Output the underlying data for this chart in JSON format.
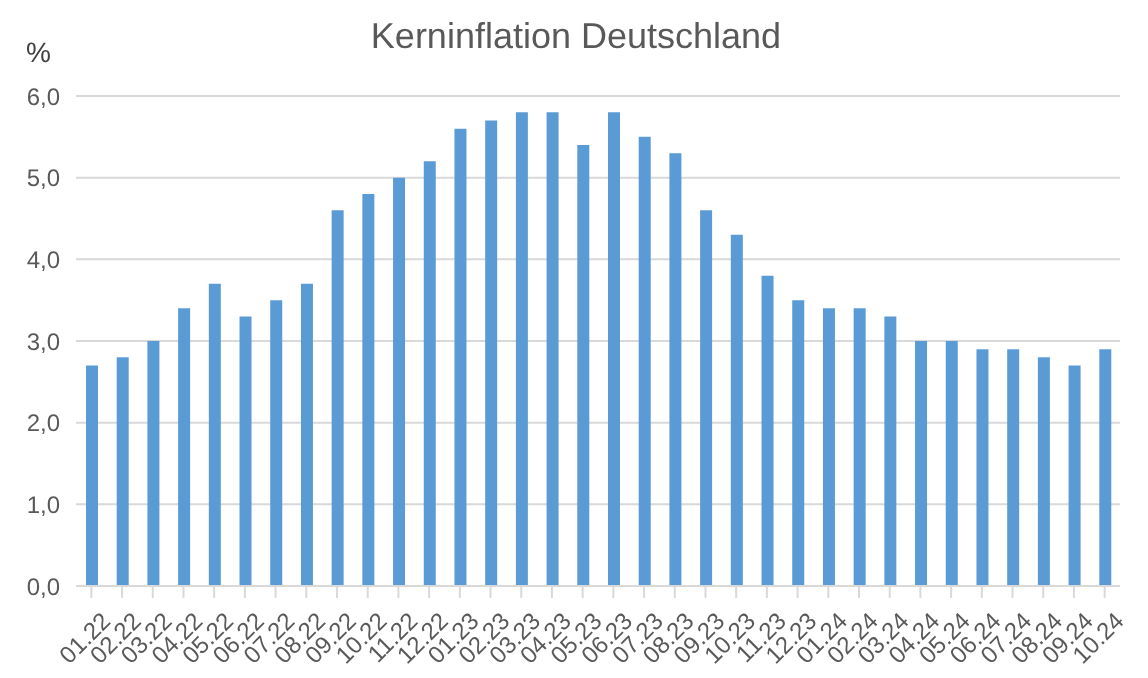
{
  "chart_data": {
    "type": "bar",
    "title": "Kerninflation Deutschland",
    "ylabel": "%",
    "categories": [
      "01.22",
      "02.22",
      "03.22",
      "04.22",
      "05.22",
      "06.22",
      "07.22",
      "08.22",
      "09.22",
      "10.22",
      "11.22",
      "12.22",
      "01.23",
      "02.23",
      "03.23",
      "04.23",
      "05.23",
      "06.23",
      "07.23",
      "08.23",
      "09.23",
      "10.23",
      "11.23",
      "12.23",
      "01.24",
      "02.24",
      "03.24",
      "04.24",
      "05.24",
      "06.24",
      "07.24",
      "08.24",
      "09.24",
      "10.24"
    ],
    "values": [
      2.7,
      2.8,
      3.0,
      3.4,
      3.7,
      3.3,
      3.5,
      3.7,
      4.6,
      4.8,
      5.0,
      5.2,
      5.6,
      5.7,
      5.8,
      5.8,
      5.4,
      5.8,
      5.5,
      5.3,
      4.6,
      4.3,
      3.8,
      3.5,
      3.4,
      3.4,
      3.3,
      3.0,
      3.0,
      2.9,
      2.9,
      2.8,
      2.7,
      2.9
    ],
    "color": "#5b9bd5",
    "ylim": [
      0,
      6
    ],
    "yticks": [
      {
        "value": 0,
        "label": "0,0"
      },
      {
        "value": 1,
        "label": "1,0"
      },
      {
        "value": 2,
        "label": "2,0"
      },
      {
        "value": 3,
        "label": "3,0"
      },
      {
        "value": 4,
        "label": "4,0"
      },
      {
        "value": 5,
        "label": "5,0"
      },
      {
        "value": 6,
        "label": "6,0"
      }
    ],
    "grid": "y",
    "legend": false
  }
}
